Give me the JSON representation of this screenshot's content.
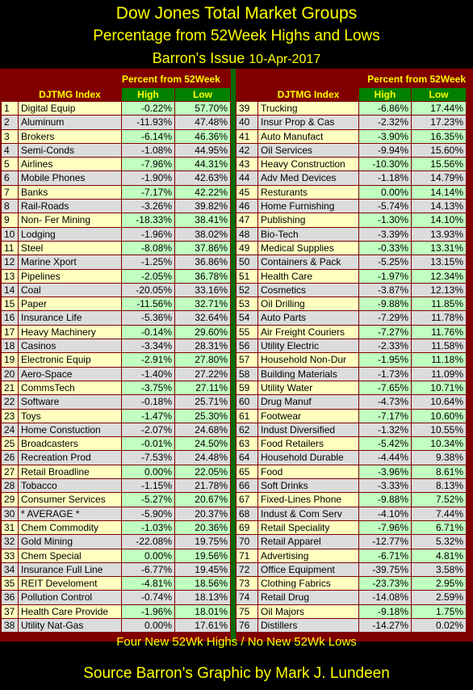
{
  "header": {
    "title": "Dow Jones Total Market Groups",
    "subtitle": "Percentage from 52Week Highs and Lows",
    "issue_prefix": "Barron's Issue",
    "issue_date": "10-Apr-2017"
  },
  "columns": {
    "percent_title": "Percent from 52Week",
    "index": "DJTMG Index",
    "high": "High",
    "low": "Low"
  },
  "left_rows": [
    {
      "rank": "1",
      "name": "Digital Equip",
      "high": "-0.22%",
      "low": "57.70%"
    },
    {
      "rank": "2",
      "name": "Aluminum",
      "high": "-11.93%",
      "low": "47.48%"
    },
    {
      "rank": "3",
      "name": "Brokers",
      "high": "-6.14%",
      "low": "46.36%"
    },
    {
      "rank": "4",
      "name": "Semi-Conds",
      "high": "-1.08%",
      "low": "44.95%"
    },
    {
      "rank": "5",
      "name": "Airlines",
      "high": "-7.96%",
      "low": "44.31%"
    },
    {
      "rank": "6",
      "name": "Mobile Phones",
      "high": "-1.90%",
      "low": "42.63%"
    },
    {
      "rank": "7",
      "name": "Banks",
      "high": "-7.17%",
      "low": "42.22%"
    },
    {
      "rank": "8",
      "name": "Rail-Roads",
      "high": "-3.26%",
      "low": "39.82%"
    },
    {
      "rank": "9",
      "name": "Non- Fer Mining",
      "high": "-18.33%",
      "low": "38.41%"
    },
    {
      "rank": "10",
      "name": "Lodging",
      "high": "-1.96%",
      "low": "38.02%"
    },
    {
      "rank": "11",
      "name": "Steel",
      "high": "-8.08%",
      "low": "37.86%"
    },
    {
      "rank": "12",
      "name": "Marine Xport",
      "high": "-1.25%",
      "low": "36.86%"
    },
    {
      "rank": "13",
      "name": "Pipelines",
      "high": "-2.05%",
      "low": "36.78%"
    },
    {
      "rank": "14",
      "name": "Coal",
      "high": "-20.05%",
      "low": "33.16%"
    },
    {
      "rank": "15",
      "name": "Paper",
      "high": "-11.56%",
      "low": "32.71%"
    },
    {
      "rank": "16",
      "name": "Insurance Life",
      "high": "-5.36%",
      "low": "32.64%"
    },
    {
      "rank": "17",
      "name": "Heavy Machinery",
      "high": "-0.14%",
      "low": "29.60%"
    },
    {
      "rank": "18",
      "name": "Casinos",
      "high": "-3.34%",
      "low": "28.31%"
    },
    {
      "rank": "19",
      "name": "Electronic Equip",
      "high": "-2.91%",
      "low": "27.80%"
    },
    {
      "rank": "20",
      "name": "Aero-Space",
      "high": "-1.40%",
      "low": "27.22%"
    },
    {
      "rank": "21",
      "name": "CommsTech",
      "high": "-3.75%",
      "low": "27.11%"
    },
    {
      "rank": "22",
      "name": "Software",
      "high": "-0.18%",
      "low": "25.71%"
    },
    {
      "rank": "23",
      "name": "Toys",
      "high": "-1.47%",
      "low": "25.30%"
    },
    {
      "rank": "24",
      "name": "Home Constuction",
      "high": "-2.07%",
      "low": "24.68%"
    },
    {
      "rank": "25",
      "name": "Broadcasters",
      "high": "-0.01%",
      "low": "24.50%"
    },
    {
      "rank": "26",
      "name": "Recreation Prod",
      "high": "-7.53%",
      "low": "24.48%"
    },
    {
      "rank": "27",
      "name": "Retail Broadline",
      "high": "0.00%",
      "low": "22.05%"
    },
    {
      "rank": "28",
      "name": "Tobacco",
      "high": "-1.15%",
      "low": "21.78%"
    },
    {
      "rank": "29",
      "name": "Consumer Services",
      "high": "-5.27%",
      "low": "20.67%"
    },
    {
      "rank": "30",
      "name": "* AVERAGE *",
      "high": "-5.90%",
      "low": "20.37%"
    },
    {
      "rank": "31",
      "name": "Chem Commodity",
      "high": "-1.03%",
      "low": "20.36%"
    },
    {
      "rank": "32",
      "name": "Gold Mining",
      "high": "-22.08%",
      "low": "19.75%"
    },
    {
      "rank": "33",
      "name": "Chem Special",
      "high": "0.00%",
      "low": "19.56%"
    },
    {
      "rank": "34",
      "name": "Insurance Full Line",
      "high": "-6.77%",
      "low": "19.45%"
    },
    {
      "rank": "35",
      "name": "REIT Develoment",
      "high": "-4.81%",
      "low": "18.56%"
    },
    {
      "rank": "36",
      "name": "Pollution Control",
      "high": "-0.74%",
      "low": "18.13%"
    },
    {
      "rank": "37",
      "name": "Health Care Provide",
      "high": "-1.96%",
      "low": "18.01%"
    },
    {
      "rank": "38",
      "name": "Utility Nat-Gas",
      "high": "0.00%",
      "low": "17.61%"
    }
  ],
  "right_rows": [
    {
      "rank": "39",
      "name": "Trucking",
      "high": "-6.86%",
      "low": "17.44%"
    },
    {
      "rank": "40",
      "name": "Insur Prop & Cas",
      "high": "-2.32%",
      "low": "17.23%"
    },
    {
      "rank": "41",
      "name": "Auto Manufact",
      "high": "-3.90%",
      "low": "16.35%"
    },
    {
      "rank": "42",
      "name": "Oil Services",
      "high": "-9.94%",
      "low": "15.60%"
    },
    {
      "rank": "43",
      "name": "Heavy Construction",
      "high": "-10.30%",
      "low": "15.56%"
    },
    {
      "rank": "44",
      "name": "Adv Med Devices",
      "high": "-1.18%",
      "low": "14.79%"
    },
    {
      "rank": "45",
      "name": "Resturants",
      "high": "0.00%",
      "low": "14.14%"
    },
    {
      "rank": "46",
      "name": "Home Furnishing",
      "high": "-5.74%",
      "low": "14.13%"
    },
    {
      "rank": "47",
      "name": "Publishing",
      "high": "-1.30%",
      "low": "14.10%"
    },
    {
      "rank": "48",
      "name": "Bio-Tech",
      "high": "-3.39%",
      "low": "13.93%"
    },
    {
      "rank": "49",
      "name": "Medical Supplies",
      "high": "-0.33%",
      "low": "13.31%"
    },
    {
      "rank": "50",
      "name": "Containers & Pack",
      "high": "-5.25%",
      "low": "13.15%"
    },
    {
      "rank": "51",
      "name": "Health Care",
      "high": "-1.97%",
      "low": "12.34%"
    },
    {
      "rank": "52",
      "name": "Cosmetics",
      "high": "-3.87%",
      "low": "12.13%"
    },
    {
      "rank": "53",
      "name": "Oil Drilling",
      "high": "-9.88%",
      "low": "11.85%"
    },
    {
      "rank": "54",
      "name": "Auto Parts",
      "high": "-7.29%",
      "low": "11.78%"
    },
    {
      "rank": "55",
      "name": "Air Freight Couriers",
      "high": "-7.27%",
      "low": "11.76%"
    },
    {
      "rank": "56",
      "name": "Utility Electric",
      "high": "-2.33%",
      "low": "11.58%"
    },
    {
      "rank": "57",
      "name": "Household Non-Dur",
      "high": "-1.95%",
      "low": "11.18%"
    },
    {
      "rank": "58",
      "name": "Building Materials",
      "high": "-1.73%",
      "low": "11.09%"
    },
    {
      "rank": "59",
      "name": "Utility Water",
      "high": "-7.65%",
      "low": "10.71%"
    },
    {
      "rank": "60",
      "name": "Drug Manuf",
      "high": "-4.73%",
      "low": "10.64%"
    },
    {
      "rank": "61",
      "name": "Footwear",
      "high": "-7.17%",
      "low": "10.60%"
    },
    {
      "rank": "62",
      "name": "Indust Diversified",
      "high": "-1.32%",
      "low": "10.55%"
    },
    {
      "rank": "63",
      "name": "Food Retailers",
      "high": "-5.42%",
      "low": "10.34%"
    },
    {
      "rank": "64",
      "name": "Household Durable",
      "high": "-4.44%",
      "low": "9.38%"
    },
    {
      "rank": "65",
      "name": "Food",
      "high": "-3.96%",
      "low": "8.61%"
    },
    {
      "rank": "66",
      "name": "Soft Drinks",
      "high": "-3.33%",
      "low": "8.13%"
    },
    {
      "rank": "67",
      "name": "Fixed-Lines Phone",
      "high": "-9.88%",
      "low": "7.52%"
    },
    {
      "rank": "68",
      "name": "Indust & Com Serv",
      "high": "-4.10%",
      "low": "7.44%"
    },
    {
      "rank": "69",
      "name": "Retail Speciality",
      "high": "-7.96%",
      "low": "6.71%"
    },
    {
      "rank": "70",
      "name": "Retail Apparel",
      "high": "-12.77%",
      "low": "5.32%"
    },
    {
      "rank": "71",
      "name": "Advertising",
      "high": "-6.71%",
      "low": "4.81%"
    },
    {
      "rank": "72",
      "name": "Office Equipment",
      "high": "-39.75%",
      "low": "3.58%"
    },
    {
      "rank": "73",
      "name": "Clothing Fabrics",
      "high": "-23.73%",
      "low": "2.95%"
    },
    {
      "rank": "74",
      "name": "Retail Drug",
      "high": "-14.08%",
      "low": "2.59%"
    },
    {
      "rank": "75",
      "name": "Oil Majors",
      "high": "-9.18%",
      "low": "1.75%"
    },
    {
      "rank": "76",
      "name": "Distillers",
      "high": "-14.27%",
      "low": "0.02%"
    }
  ],
  "footer": {
    "summary": "Four New 52Wk Highs /  No New 52Wk Lows",
    "credit": "Source Barron's  Graphic by Mark J. Lundeen"
  },
  "colors": {
    "background": "#000000",
    "panel": "#800000",
    "divider": "#0b6b0b",
    "title_text": "#ffff00",
    "header_cell": "#008000",
    "row_odd_label": "#ffffc0",
    "row_odd_value": "#c0ffc0",
    "row_even": "#dcdcdc"
  }
}
